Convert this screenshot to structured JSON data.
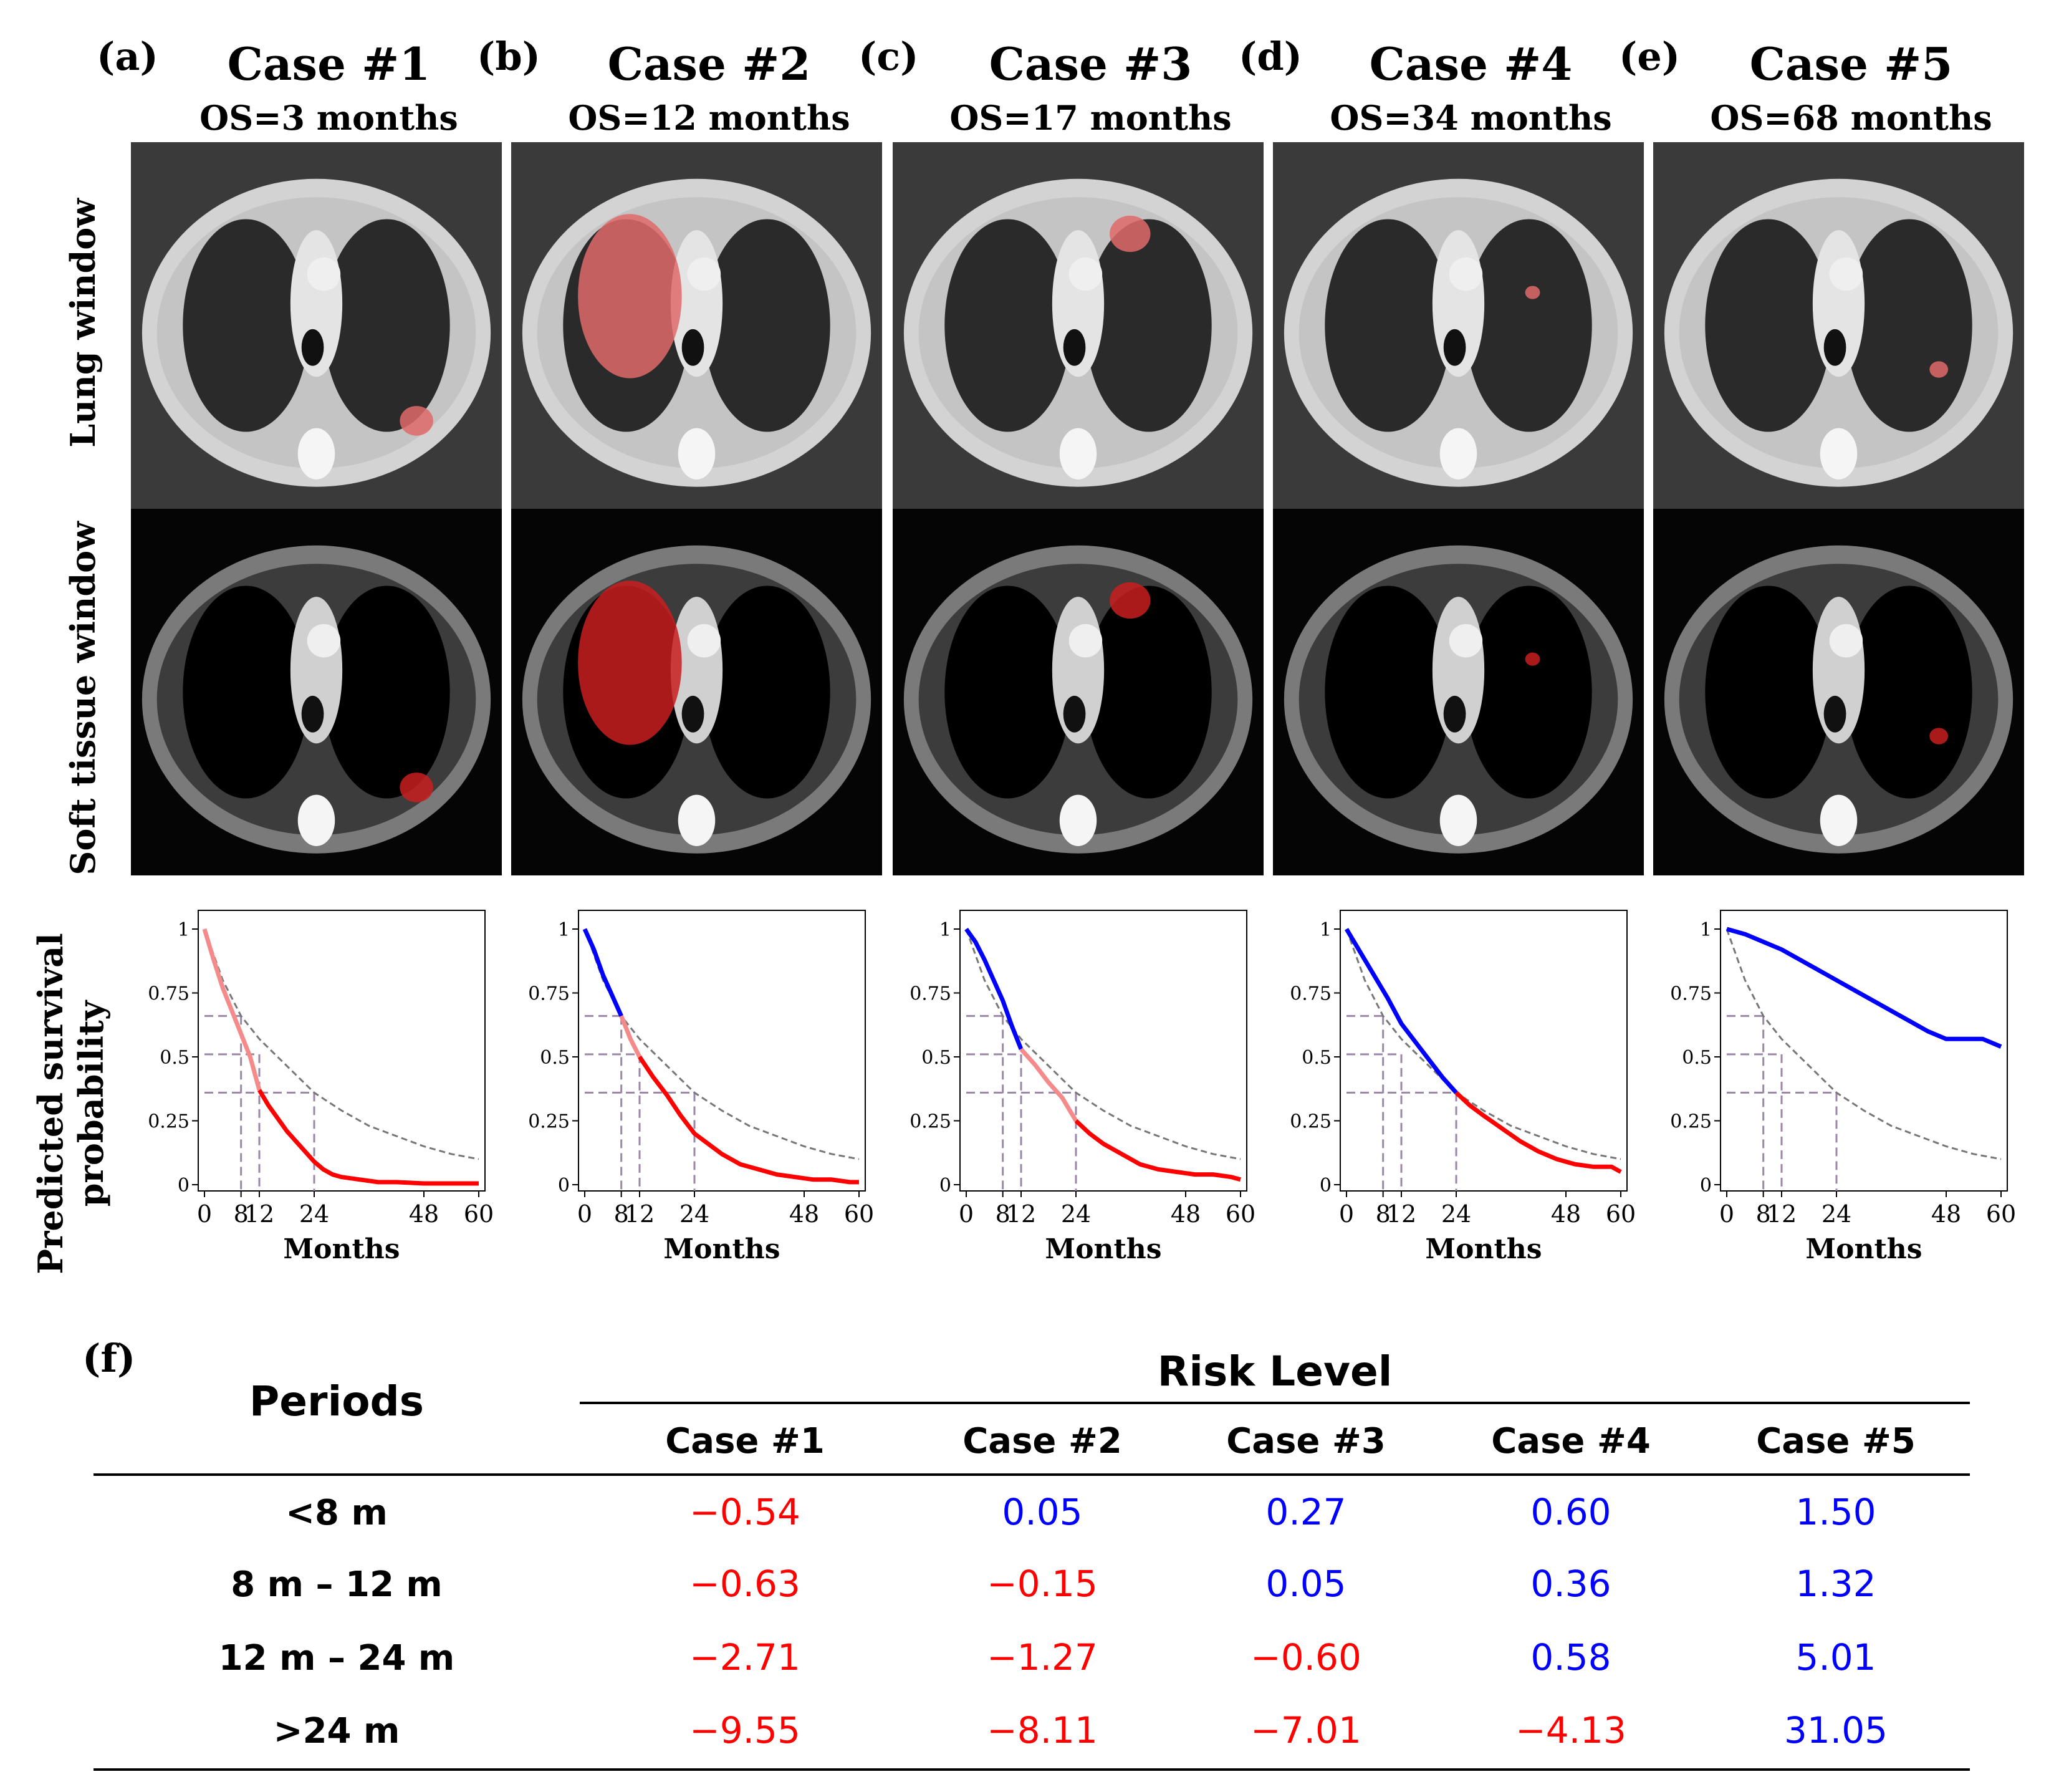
{
  "cases": [
    {
      "panel": "(a)",
      "title": "Case #1",
      "os": "OS=3 months"
    },
    {
      "panel": "(b)",
      "title": "Case #2",
      "os": "OS=12 months"
    },
    {
      "panel": "(c)",
      "title": "Case #3",
      "os": "OS=17 months"
    },
    {
      "panel": "(d)",
      "title": "Case #4",
      "os": "OS=34 months"
    },
    {
      "panel": "(e)",
      "title": "Case #5",
      "os": "OS=68 months"
    }
  ],
  "row_labels": {
    "lung": "Lung window",
    "soft": "Soft tissue window"
  },
  "plot_ylabel": [
    "Predicted survival",
    "probability"
  ],
  "colors": {
    "high_risk": "#ff0000",
    "low_risk": "#0000ff",
    "reference": "#777777",
    "guide": "#9b86a8",
    "segment": "#ff0000",
    "axis": "#000000"
  },
  "chart_data": [
    {
      "type": "line",
      "case": "Case #1",
      "xlabel": "Months",
      "xticks": [
        0,
        8,
        12,
        24,
        48,
        60
      ],
      "yticks": [
        0,
        0.25,
        0.5,
        0.75,
        1
      ],
      "ytick_labels": [
        "0",
        "0.25",
        "0.5",
        "0.75",
        "1"
      ],
      "xlim": [
        0,
        60
      ],
      "ylim": [
        0,
        1
      ],
      "series": [
        {
          "role": "reference",
          "style": "dashed",
          "x": [
            0,
            4,
            8,
            12,
            16,
            20,
            24,
            30,
            36,
            42,
            48,
            54,
            60
          ],
          "y": [
            1,
            0.8,
            0.66,
            0.57,
            0.5,
            0.43,
            0.36,
            0.29,
            0.23,
            0.19,
            0.15,
            0.12,
            0.1
          ]
        },
        {
          "role": "prediction",
          "color_segments": [
            {
              "from": 0,
              "to": 12,
              "color": "light"
            },
            {
              "from": 12,
              "to": 60,
              "color": "red"
            }
          ],
          "x": [
            0,
            2,
            4,
            6,
            8,
            10,
            12,
            14,
            16,
            18,
            20,
            22,
            24,
            26,
            28,
            30,
            34,
            38,
            42,
            48,
            54,
            60
          ],
          "y": [
            1,
            0.88,
            0.77,
            0.68,
            0.59,
            0.5,
            0.37,
            0.31,
            0.26,
            0.21,
            0.17,
            0.13,
            0.09,
            0.06,
            0.04,
            0.03,
            0.02,
            0.01,
            0.01,
            0.005,
            0.005,
            0.005
          ]
        }
      ],
      "guides": [
        {
          "x": 8,
          "y": 0.66
        },
        {
          "x": 12,
          "y": 0.51
        },
        {
          "x": 24,
          "y": 0.36
        }
      ]
    },
    {
      "type": "line",
      "case": "Case #2",
      "xlabel": "Months",
      "xticks": [
        0,
        8,
        12,
        24,
        48,
        60
      ],
      "yticks": [
        0,
        0.25,
        0.5,
        0.75,
        1
      ],
      "ytick_labels": [
        "0",
        "0.25",
        "0.5",
        "0.75",
        "1"
      ],
      "xlim": [
        0,
        60
      ],
      "ylim": [
        0,
        1
      ],
      "series": [
        {
          "role": "reference",
          "style": "dashed",
          "x": [
            0,
            4,
            8,
            12,
            16,
            20,
            24,
            30,
            36,
            42,
            48,
            54,
            60
          ],
          "y": [
            1,
            0.8,
            0.66,
            0.57,
            0.5,
            0.43,
            0.36,
            0.29,
            0.23,
            0.19,
            0.15,
            0.12,
            0.1
          ]
        },
        {
          "role": "prediction",
          "color_segments": [
            {
              "from": 0,
              "to": 8,
              "color": "blue"
            },
            {
              "from": 8,
              "to": 12,
              "color": "light"
            },
            {
              "from": 12,
              "to": 60,
              "color": "red"
            }
          ],
          "x": [
            0,
            2,
            4,
            6,
            8,
            10,
            12,
            15,
            18,
            21,
            24,
            27,
            30,
            34,
            38,
            42,
            46,
            50,
            54,
            58,
            60
          ],
          "y": [
            1,
            0.92,
            0.82,
            0.74,
            0.66,
            0.57,
            0.5,
            0.42,
            0.35,
            0.27,
            0.2,
            0.16,
            0.12,
            0.08,
            0.06,
            0.04,
            0.03,
            0.02,
            0.02,
            0.01,
            0.01
          ]
        }
      ],
      "guides": [
        {
          "x": 8,
          "y": 0.66
        },
        {
          "x": 12,
          "y": 0.51
        },
        {
          "x": 24,
          "y": 0.36
        }
      ]
    },
    {
      "type": "line",
      "case": "Case #3",
      "xlabel": "Months",
      "xticks": [
        0,
        8,
        12,
        24,
        48,
        60
      ],
      "yticks": [
        0,
        0.25,
        0.5,
        0.75,
        1
      ],
      "ytick_labels": [
        "0",
        "0.25",
        "0.5",
        "0.75",
        "1"
      ],
      "xlim": [
        0,
        60
      ],
      "ylim": [
        0,
        1
      ],
      "series": [
        {
          "role": "reference",
          "style": "dashed",
          "x": [
            0,
            4,
            8,
            12,
            16,
            20,
            24,
            30,
            36,
            42,
            48,
            54,
            60
          ],
          "y": [
            1,
            0.8,
            0.66,
            0.57,
            0.5,
            0.43,
            0.36,
            0.29,
            0.23,
            0.19,
            0.15,
            0.12,
            0.1
          ]
        },
        {
          "role": "prediction",
          "color_segments": [
            {
              "from": 0,
              "to": 12,
              "color": "blue"
            },
            {
              "from": 12,
              "to": 24,
              "color": "light"
            },
            {
              "from": 24,
              "to": 60,
              "color": "red"
            }
          ],
          "x": [
            0,
            2,
            4,
            6,
            8,
            10,
            12,
            15,
            18,
            21,
            24,
            27,
            30,
            34,
            38,
            42,
            46,
            50,
            54,
            58,
            60
          ],
          "y": [
            1,
            0.95,
            0.88,
            0.8,
            0.72,
            0.62,
            0.53,
            0.47,
            0.4,
            0.34,
            0.25,
            0.2,
            0.16,
            0.12,
            0.08,
            0.06,
            0.05,
            0.04,
            0.04,
            0.03,
            0.02
          ]
        }
      ],
      "guides": [
        {
          "x": 8,
          "y": 0.66
        },
        {
          "x": 12,
          "y": 0.51
        },
        {
          "x": 24,
          "y": 0.36
        }
      ]
    },
    {
      "type": "line",
      "case": "Case #4",
      "xlabel": "Months",
      "xticks": [
        0,
        8,
        12,
        24,
        48,
        60
      ],
      "yticks": [
        0,
        0.25,
        0.5,
        0.75,
        1
      ],
      "ytick_labels": [
        "0",
        "0.25",
        "0.5",
        "0.75",
        "1"
      ],
      "xlim": [
        0,
        60
      ],
      "ylim": [
        0,
        1
      ],
      "series": [
        {
          "role": "reference",
          "style": "dashed",
          "x": [
            0,
            4,
            8,
            12,
            16,
            20,
            24,
            30,
            36,
            42,
            48,
            54,
            60
          ],
          "y": [
            1,
            0.8,
            0.66,
            0.57,
            0.5,
            0.43,
            0.36,
            0.29,
            0.23,
            0.19,
            0.15,
            0.12,
            0.1
          ]
        },
        {
          "role": "prediction",
          "color_segments": [
            {
              "from": 0,
              "to": 24,
              "color": "blue"
            },
            {
              "from": 24,
              "to": 60,
              "color": "red"
            }
          ],
          "x": [
            0,
            3,
            6,
            9,
            12,
            15,
            18,
            21,
            24,
            27,
            30,
            34,
            38,
            42,
            46,
            50,
            54,
            58,
            60
          ],
          "y": [
            1,
            0.91,
            0.82,
            0.73,
            0.63,
            0.56,
            0.49,
            0.42,
            0.36,
            0.31,
            0.27,
            0.22,
            0.17,
            0.13,
            0.1,
            0.08,
            0.07,
            0.07,
            0.05
          ]
        }
      ],
      "guides": [
        {
          "x": 8,
          "y": 0.66
        },
        {
          "x": 12,
          "y": 0.51
        },
        {
          "x": 24,
          "y": 0.36
        }
      ]
    },
    {
      "type": "line",
      "case": "Case #5",
      "xlabel": "Months",
      "xticks": [
        0,
        8,
        12,
        24,
        48,
        60
      ],
      "yticks": [
        0,
        0.25,
        0.5,
        0.75,
        1
      ],
      "ytick_labels": [
        "0",
        "0.25",
        "0.5",
        "0.75",
        "1"
      ],
      "xlim": [
        0,
        60
      ],
      "ylim": [
        0,
        1
      ],
      "series": [
        {
          "role": "reference",
          "style": "dashed",
          "x": [
            0,
            4,
            8,
            12,
            16,
            20,
            24,
            30,
            36,
            42,
            48,
            54,
            60
          ],
          "y": [
            1,
            0.8,
            0.66,
            0.57,
            0.5,
            0.43,
            0.36,
            0.29,
            0.23,
            0.19,
            0.15,
            0.12,
            0.1
          ]
        },
        {
          "role": "prediction",
          "color_segments": [
            {
              "from": 0,
              "to": 60,
              "color": "blue"
            }
          ],
          "x": [
            0,
            4,
            8,
            12,
            16,
            20,
            24,
            28,
            32,
            36,
            40,
            44,
            48,
            52,
            56,
            60
          ],
          "y": [
            1,
            0.98,
            0.95,
            0.92,
            0.88,
            0.84,
            0.8,
            0.76,
            0.72,
            0.68,
            0.64,
            0.6,
            0.57,
            0.57,
            0.57,
            0.54
          ]
        }
      ],
      "guides": [
        {
          "x": 8,
          "y": 0.66
        },
        {
          "x": 12,
          "y": 0.51
        },
        {
          "x": 24,
          "y": 0.36
        }
      ]
    },
    {
      "type": "table",
      "panel": "(f)",
      "header_group": "Risk Level",
      "row_header": "Periods",
      "columns": [
        "Case #1",
        "Case #2",
        "Case #3",
        "Case #4",
        "Case #5"
      ],
      "rows": [
        {
          "period": "<8 m",
          "values": [
            "−0.54",
            "0.05",
            "0.27",
            "0.60",
            "1.50"
          ],
          "negative": [
            true,
            false,
            false,
            false,
            false
          ]
        },
        {
          "period": "8 m – 12 m",
          "values": [
            "−0.63",
            "−0.15",
            "0.05",
            "0.36",
            "1.32"
          ],
          "negative": [
            true,
            true,
            false,
            false,
            false
          ]
        },
        {
          "period": "12 m – 24 m",
          "values": [
            "−2.71",
            "−1.27",
            "−0.60",
            "0.58",
            "5.01"
          ],
          "negative": [
            true,
            true,
            true,
            false,
            false
          ]
        },
        {
          "period": ">24 m",
          "values": [
            "−9.55",
            "−8.11",
            "−7.01",
            "−4.13",
            "31.05"
          ],
          "negative": [
            true,
            true,
            true,
            true,
            false
          ]
        }
      ]
    }
  ]
}
